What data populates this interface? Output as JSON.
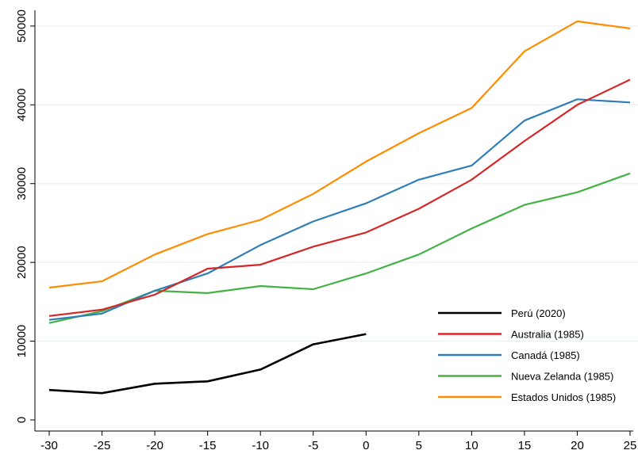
{
  "chart_data": {
    "type": "line",
    "title": "",
    "xlabel": "",
    "ylabel": "",
    "xlim": [
      -30,
      25
    ],
    "ylim": [
      0,
      52000
    ],
    "grid": true,
    "legend_position": "bottom-right",
    "x_ticks": [
      -30,
      -25,
      -20,
      -15,
      -10,
      -5,
      0,
      5,
      10,
      15,
      20,
      25
    ],
    "y_ticks": [
      0,
      10000,
      20000,
      30000,
      40000,
      50000
    ],
    "x_tick_labels": [
      "-30",
      "-25",
      "-20",
      "-15",
      "-10",
      "-5",
      "0",
      "5",
      "10",
      "15",
      "20",
      "25"
    ],
    "y_tick_labels": [
      "0",
      "10000",
      "20000",
      "30000",
      "40000",
      "50000"
    ],
    "x": [
      -30,
      -25,
      -20,
      -15,
      -10,
      -5,
      0,
      5,
      10,
      15,
      20,
      25
    ],
    "series": [
      {
        "name": "Perú (2020)",
        "color": "#000000",
        "values": [
          3800,
          3400,
          4600,
          4900,
          6400,
          9600,
          10900,
          null,
          null,
          null,
          null,
          null
        ]
      },
      {
        "name": "Australia (1985)",
        "color": "#d62728",
        "values": [
          13200,
          14000,
          15900,
          19200,
          19700,
          22000,
          23800,
          26800,
          30500,
          35400,
          40000,
          43200
        ]
      },
      {
        "name": "Canadá (1985)",
        "color": "#2f7eb8",
        "values": [
          12700,
          13500,
          16400,
          18600,
          22200,
          25200,
          27500,
          30500,
          32300,
          38000,
          40700,
          40300
        ]
      },
      {
        "name": "Nueva Zelanda (1985)",
        "color": "#43b244",
        "values": [
          12300,
          13800,
          16400,
          16100,
          17000,
          16600,
          18600,
          21000,
          24300,
          27300,
          28900,
          31300
        ]
      },
      {
        "name": "Estados Unidos (1985)",
        "color": "#ff8c00",
        "values": [
          16800,
          17600,
          21000,
          23600,
          25400,
          28700,
          32800,
          36400,
          39600,
          46800,
          50600,
          49700
        ]
      }
    ]
  }
}
